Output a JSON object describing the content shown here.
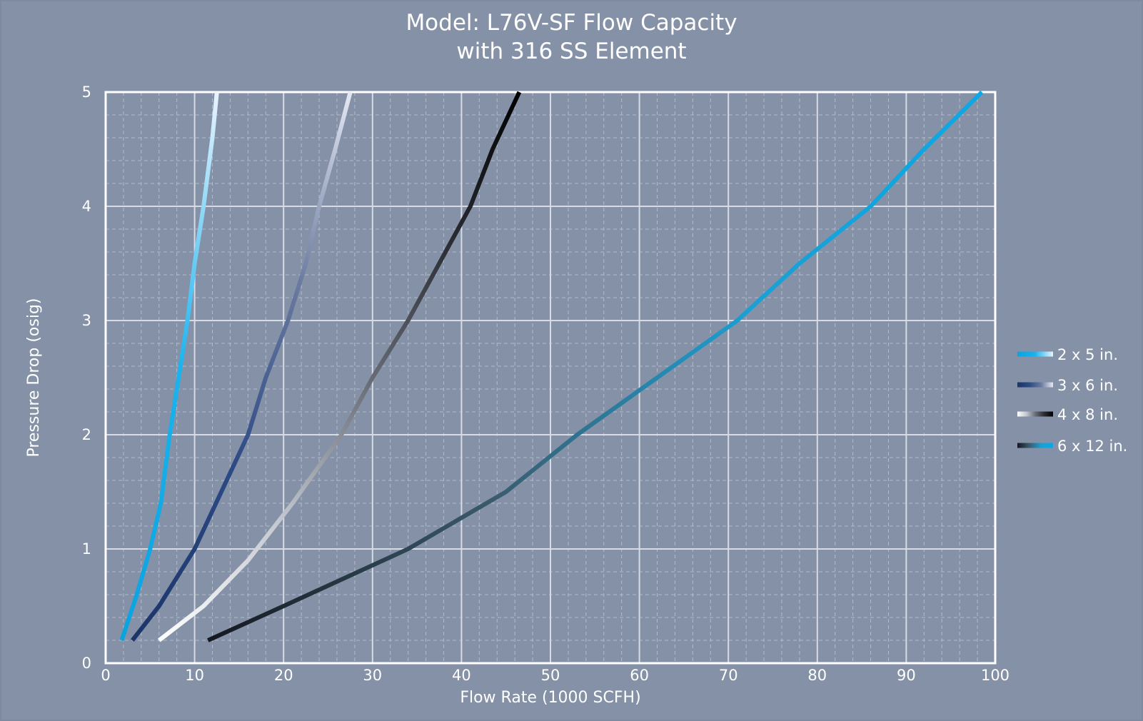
{
  "chart_data": {
    "type": "line",
    "title": "Model: L76V-SF Flow Capacity",
    "subtitle": "with 316 SS Element",
    "xlabel": "Flow Rate (1000 SCFH)",
    "ylabel": "Pressure Drop (osig)",
    "xlim": [
      0,
      100
    ],
    "ylim": [
      0,
      5
    ],
    "xticks": [
      0,
      10,
      20,
      30,
      40,
      50,
      60,
      70,
      80,
      90,
      100
    ],
    "yticks": [
      0,
      1,
      2,
      3,
      4,
      5
    ],
    "grid": true,
    "legend_position": "right",
    "series": [
      {
        "name": "2 x 5 in.",
        "gradient": [
          "#0aa3e0",
          "#1ab3ee",
          "#e8f4ff"
        ],
        "points": [
          [
            1.8,
            0.2
          ],
          [
            3.5,
            0.6
          ],
          [
            5,
            1.0
          ],
          [
            6.2,
            1.4
          ],
          [
            7.2,
            2.0
          ],
          [
            8.2,
            2.5
          ],
          [
            9.2,
            3.0
          ],
          [
            10,
            3.5
          ],
          [
            11,
            4.0
          ],
          [
            12,
            4.6
          ],
          [
            12.5,
            5.0
          ]
        ]
      },
      {
        "name": "3 x 6 in.",
        "gradient": [
          "#1b3569",
          "#2c4a85",
          "#6a7aa0",
          "#e4e8f2"
        ],
        "points": [
          [
            3,
            0.2
          ],
          [
            6,
            0.5
          ],
          [
            10,
            1.0
          ],
          [
            13,
            1.5
          ],
          [
            16,
            2.0
          ],
          [
            18,
            2.5
          ],
          [
            20.5,
            3.0
          ],
          [
            22.5,
            3.5
          ],
          [
            24,
            4.0
          ],
          [
            25.8,
            4.5
          ],
          [
            27.5,
            5.0
          ]
        ]
      },
      {
        "name": "4 x 8 in.",
        "gradient": [
          "#ffffff",
          "#c4c8d0",
          "#6a6e78",
          "#2a2d33",
          "#000000"
        ],
        "points": [
          [
            6,
            0.2
          ],
          [
            11,
            0.5
          ],
          [
            16,
            0.9
          ],
          [
            21,
            1.4
          ],
          [
            26.5,
            2.0
          ],
          [
            30,
            2.5
          ],
          [
            34,
            3.0
          ],
          [
            37.5,
            3.5
          ],
          [
            41,
            4.0
          ],
          [
            43.5,
            4.5
          ],
          [
            46.5,
            5.0
          ]
        ]
      },
      {
        "name": "6 x 12 in.",
        "gradient": [
          "#15181f",
          "#3a5c6e",
          "#1aa0d4",
          "#0aa9e6"
        ],
        "points": [
          [
            11.5,
            0.2
          ],
          [
            20,
            0.5
          ],
          [
            34,
            1.0
          ],
          [
            45,
            1.5
          ],
          [
            53,
            2.0
          ],
          [
            62,
            2.5
          ],
          [
            71,
            3.0
          ],
          [
            78,
            3.5
          ],
          [
            86,
            4.0
          ],
          [
            92,
            4.5
          ],
          [
            98.5,
            5.0
          ]
        ]
      }
    ]
  }
}
